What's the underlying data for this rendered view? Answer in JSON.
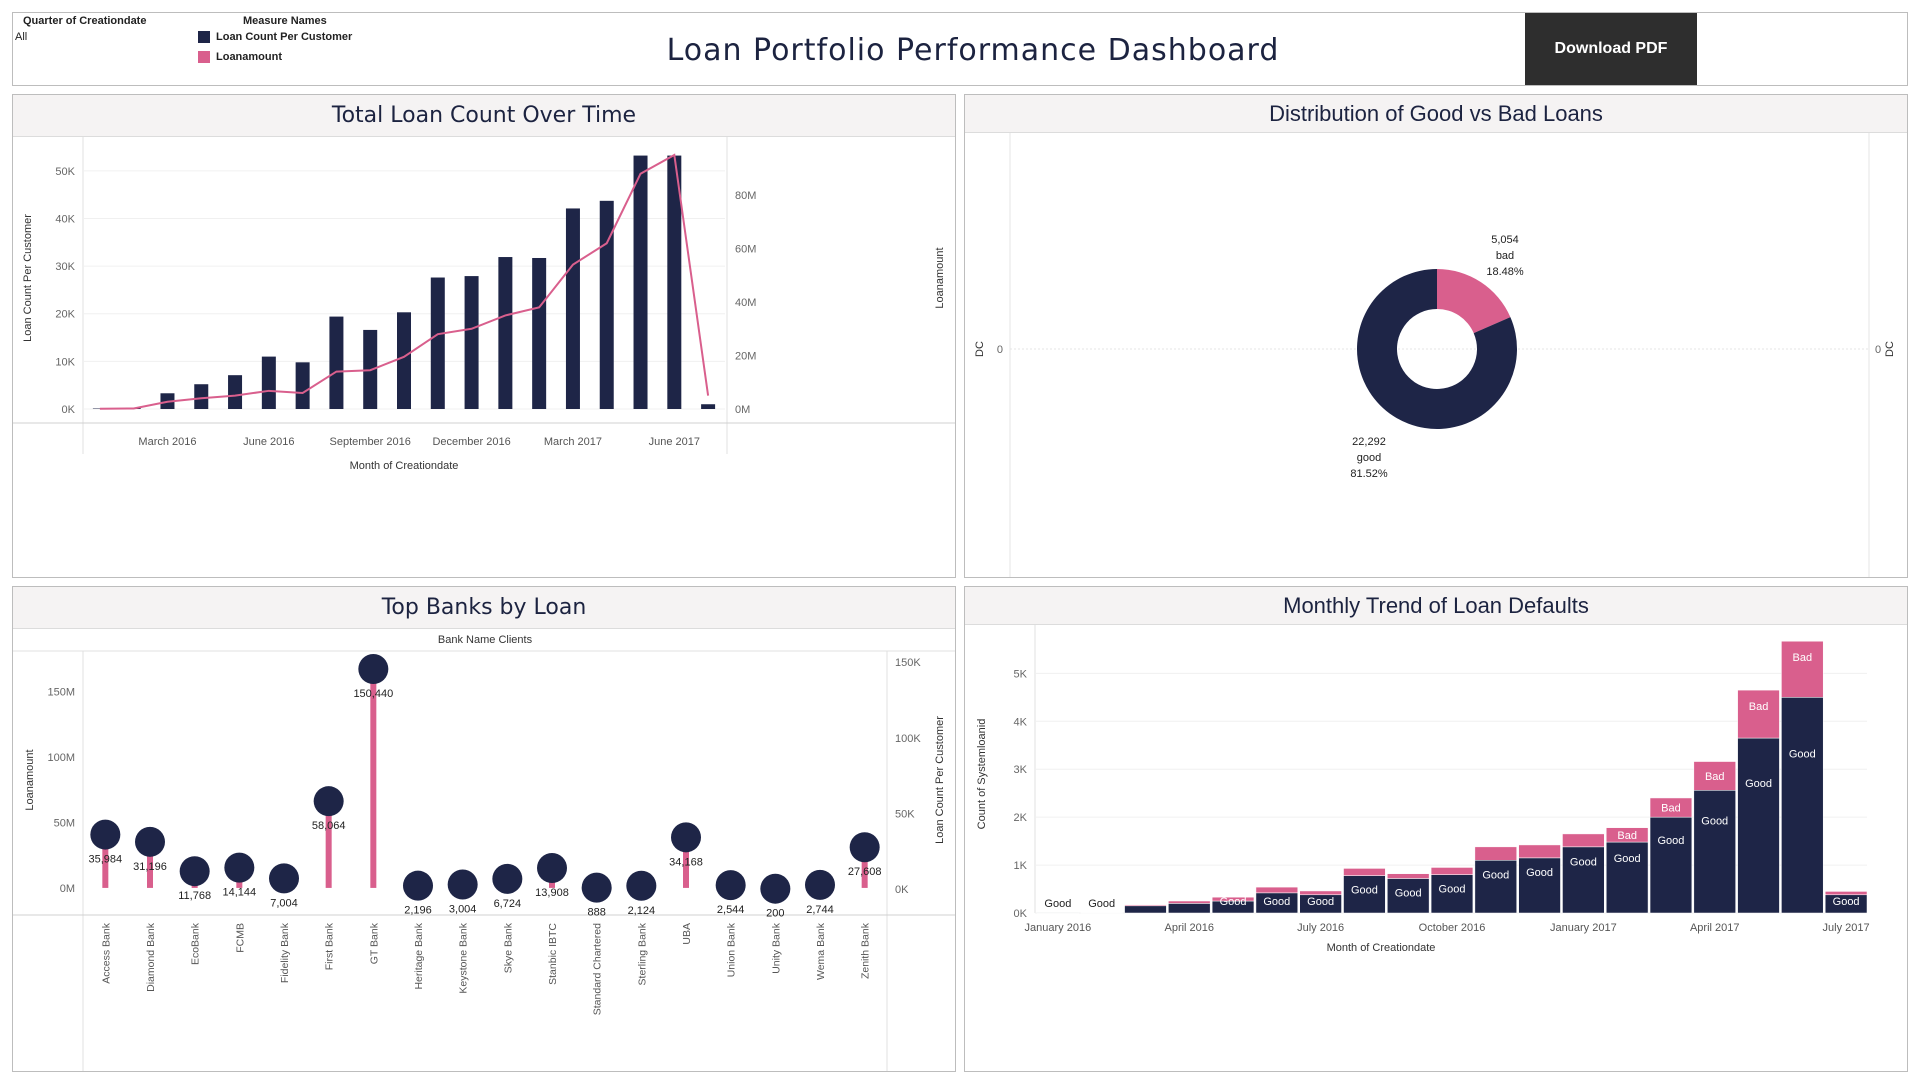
{
  "header": {
    "filter_label": "Quarter of Creationdate",
    "filter_value": "All",
    "legend_title": "Measure Names",
    "legend_items": [
      {
        "label": "Loan Count Per Customer",
        "color": "#1e2547"
      },
      {
        "label": "Loanamount",
        "color": "#d95f8d"
      }
    ],
    "title": "Loan Portfolio Performance Dashboard",
    "download_label": "Download PDF"
  },
  "panels": {
    "loan_count": "Total Loan Count Over Time",
    "distribution": "Distribution of Good vs Bad Loans",
    "top_banks": "Top Banks by Loan",
    "defaults": "Monthly Trend of Loan Defaults"
  },
  "colors": {
    "navy": "#1e2547",
    "pink": "#d95f8d"
  },
  "chart_data": [
    {
      "id": "loan_count_over_time",
      "type": "bar",
      "title": "Total Loan Count Over Time",
      "xlabel": "Month of Creationdate",
      "ylabel": "Loan Count Per Customer",
      "y2label": "Loanamount",
      "ylim": [
        0,
        55000
      ],
      "y2lim": [
        0,
        98000000
      ],
      "yticks": [
        0,
        10000,
        20000,
        30000,
        40000,
        50000
      ],
      "ytick_labels": [
        "0K",
        "10K",
        "20K",
        "30K",
        "40K",
        "50K"
      ],
      "y2ticks": [
        0,
        20000000,
        40000000,
        60000000,
        80000000
      ],
      "y2tick_labels": [
        "0M",
        "20M",
        "40M",
        "60M",
        "80M"
      ],
      "x": [
        "2016-01",
        "2016-02",
        "2016-03",
        "2016-04",
        "2016-05",
        "2016-06",
        "2016-07",
        "2016-08",
        "2016-09",
        "2016-10",
        "2016-11",
        "2016-12",
        "2017-01",
        "2017-02",
        "2017-03",
        "2017-04",
        "2017-05",
        "2017-06",
        "2017-07"
      ],
      "x_tick_labels": [
        {
          "at": "2016-03",
          "label": "March 2016"
        },
        {
          "at": "2016-06",
          "label": "June 2016"
        },
        {
          "at": "2016-09",
          "label": "September 2016"
        },
        {
          "at": "2016-12",
          "label": "December 2016"
        },
        {
          "at": "2017-03",
          "label": "March 2017"
        },
        {
          "at": "2017-06",
          "label": "June 2017"
        }
      ],
      "series": [
        {
          "name": "Loan Count Per Customer",
          "type": "bar",
          "axis": "left",
          "values": [
            100,
            200,
            3300,
            5200,
            7100,
            11000,
            9800,
            19400,
            16600,
            20300,
            27600,
            27900,
            31900,
            31700,
            42100,
            43700,
            53200,
            53200,
            1000
          ]
        },
        {
          "name": "Loanamount",
          "type": "line",
          "axis": "right",
          "values": [
            100000,
            200000,
            2700000,
            4000000,
            5000000,
            6800000,
            6000000,
            14000000,
            14500000,
            19500000,
            28000000,
            30000000,
            35000000,
            38000000,
            54000000,
            62000000,
            88000000,
            107000000,
            5000000
          ]
        }
      ]
    },
    {
      "id": "good_vs_bad",
      "type": "pie",
      "title": "Distribution of Good vs Bad Loans",
      "axis_label": "DC",
      "axis_value": "0",
      "slices": [
        {
          "label": "good",
          "value": 22292,
          "value_label": "22,292",
          "percent_label": "81.52%",
          "color": "#1e2547"
        },
        {
          "label": "bad",
          "value": 5054,
          "value_label": "5,054",
          "percent_label": "18.48%",
          "color": "#d95f8d"
        }
      ]
    },
    {
      "id": "top_banks",
      "type": "scatter",
      "title": "Top Banks by Loan",
      "column_header": "Bank Name Clients",
      "ylabel": "Loanamount",
      "y2label": "Loan Count Per Customer",
      "ylim": [
        -10000000,
        175000000
      ],
      "y2lim": [
        0,
        160000
      ],
      "yticks": [
        0,
        50000000,
        100000000,
        150000000
      ],
      "ytick_labels": [
        "0M",
        "50M",
        "100M",
        "150M"
      ],
      "y2ticks": [
        0,
        50000,
        100000,
        150000
      ],
      "y2tick_labels": [
        "0K",
        "50K",
        "100K",
        "150K"
      ],
      "categories": [
        "Access Bank",
        "Diamond Bank",
        "EcoBank",
        "FCMB",
        "Fidelity Bank",
        "First Bank",
        "GT Bank",
        "Heritage Bank",
        "Keystone Bank",
        "Skye Bank",
        "Stanbic IBTC",
        "Standard Chartered",
        "Sterling Bank",
        "UBA",
        "Union Bank",
        "Unity Bank",
        "Wema Bank",
        "Zenith Bank"
      ],
      "loanamount": [
        37000000,
        34000000,
        10000000,
        13000000,
        4000000,
        63000000,
        170000000,
        3000000,
        3000000,
        6000000,
        15000000,
        1500000,
        3000000,
        37000000,
        2500000,
        400000,
        2800000,
        28000000
      ],
      "loan_count": [
        35984,
        31196,
        11768,
        14144,
        7004,
        58064,
        150440,
        2196,
        3004,
        6724,
        13908,
        888,
        2124,
        34168,
        2544,
        200,
        2744,
        27608
      ],
      "loan_count_labels": [
        "35,984",
        "31,196",
        "11,768",
        "14,144",
        "7,004",
        "58,064",
        "150,440",
        "2,196",
        "3,004",
        "6,724",
        "13,908",
        "888",
        "2,124",
        "34,168",
        "2,544",
        "200",
        "2,744",
        "27,608"
      ]
    },
    {
      "id": "monthly_defaults",
      "type": "bar",
      "title": "Monthly Trend of Loan Defaults",
      "xlabel": "Month of Creationdate",
      "ylabel": "Count of Systemloanid",
      "ylim": [
        0,
        5800
      ],
      "yticks": [
        0,
        1000,
        2000,
        3000,
        4000,
        5000
      ],
      "ytick_labels": [
        "0K",
        "1K",
        "2K",
        "3K",
        "4K",
        "5K"
      ],
      "x": [
        "2016-01",
        "2016-02",
        "2016-03",
        "2016-04",
        "2016-05",
        "2016-06",
        "2016-07",
        "2016-08",
        "2016-09",
        "2016-10",
        "2016-11",
        "2016-12",
        "2017-01",
        "2017-02",
        "2017-03",
        "2017-04",
        "2017-05",
        "2017-06",
        "2017-07"
      ],
      "x_tick_labels": [
        {
          "at": "2016-01",
          "label": "January 2016"
        },
        {
          "at": "2016-04",
          "label": "April 2016"
        },
        {
          "at": "2016-07",
          "label": "July 2016"
        },
        {
          "at": "2016-10",
          "label": "October 2016"
        },
        {
          "at": "2017-01",
          "label": "January 2017"
        },
        {
          "at": "2017-04",
          "label": "April 2017"
        },
        {
          "at": "2017-07",
          "label": "July 2017"
        }
      ],
      "stacked": true,
      "series": [
        {
          "name": "Good",
          "values": [
            3,
            5,
            150,
            200,
            250,
            420,
            380,
            780,
            720,
            800,
            1100,
            1150,
            1380,
            1480,
            2000,
            2560,
            3650,
            4500,
            380
          ]
        },
        {
          "name": "Bad",
          "values": [
            0,
            0,
            20,
            50,
            80,
            120,
            80,
            150,
            100,
            150,
            280,
            270,
            270,
            300,
            400,
            600,
            1000,
            1170,
            70
          ]
        }
      ],
      "good_labels_shown": [
        true,
        true,
        false,
        false,
        true,
        true,
        true,
        true,
        true,
        true,
        true,
        true,
        true,
        true,
        true,
        true,
        true,
        true,
        true
      ],
      "bad_labels_shown": [
        false,
        false,
        false,
        false,
        false,
        false,
        false,
        false,
        false,
        false,
        false,
        false,
        false,
        true,
        true,
        true,
        true,
        true,
        false
      ],
      "series_label_text": {
        "Good": "Good",
        "Bad": "Bad"
      }
    }
  ]
}
